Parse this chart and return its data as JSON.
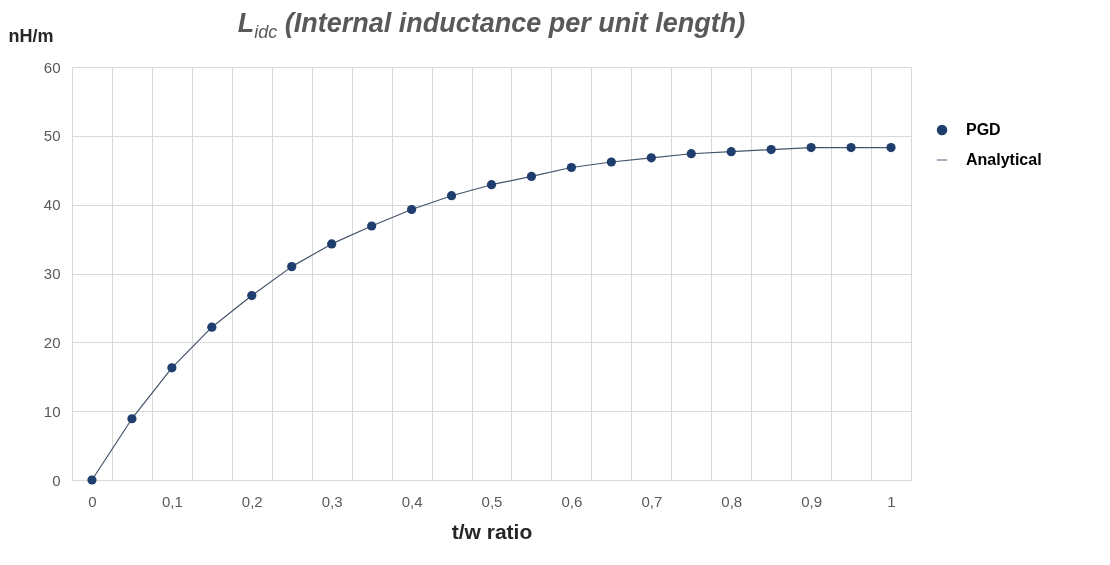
{
  "chart_data": {
    "type": "line",
    "title": "L$_{idc}$ (Internal inductance per unit length)",
    "xlabel": "t/w ratio",
    "ylabel": "nH/m",
    "categories": [
      "0",
      null,
      "0,1",
      null,
      "0,2",
      null,
      "0,3",
      null,
      "0,4",
      null,
      "0,5",
      null,
      "0,6",
      null,
      "0,7",
      null,
      "0,8",
      null,
      "0,9",
      null,
      "1"
    ],
    "series": [
      {
        "name": "PGD",
        "type": "scatter",
        "marker": "circle",
        "color": "#1f3e6e",
        "values": [
          0,
          8.9,
          16.3,
          22.2,
          26.8,
          31.0,
          34.3,
          36.9,
          39.3,
          41.3,
          42.9,
          44.1,
          45.4,
          46.2,
          46.8,
          47.4,
          47.7,
          48.0,
          48.3,
          48.3,
          48.3
        ]
      },
      {
        "name": "Analytical",
        "type": "line",
        "marker": "none",
        "color": "#44546a",
        "values": [
          0,
          8.9,
          16.3,
          22.2,
          26.8,
          31.0,
          34.3,
          36.9,
          39.3,
          41.3,
          42.9,
          44.1,
          45.4,
          46.2,
          46.8,
          47.4,
          47.7,
          48.0,
          48.3,
          48.3,
          48.3
        ]
      }
    ],
    "ylim": [
      0,
      60
    ],
    "yticks": [
      0,
      10,
      20,
      30,
      40,
      50,
      60
    ],
    "grid": true,
    "legend": "right",
    "line_style": "solid"
  }
}
